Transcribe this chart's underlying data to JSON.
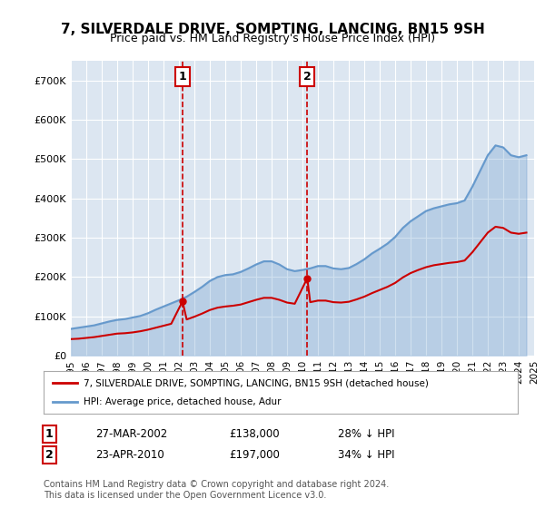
{
  "title": "7, SILVERDALE DRIVE, SOMPTING, LANCING, BN15 9SH",
  "subtitle": "Price paid vs. HM Land Registry's House Price Index (HPI)",
  "ylabel": "",
  "background_color": "#ffffff",
  "plot_bg_color": "#dce6f1",
  "grid_color": "#ffffff",
  "purchase1_date": "27-MAR-2002",
  "purchase1_price": 138000,
  "purchase1_label": "28% ↓ HPI",
  "purchase2_date": "23-APR-2010",
  "purchase2_price": 197000,
  "purchase2_label": "34% ↓ HPI",
  "purchase1_x": 2002.23,
  "purchase2_x": 2010.31,
  "red_line_color": "#cc0000",
  "blue_line_color": "#6699cc",
  "dashed_line_color": "#cc0000",
  "legend1_label": "7, SILVERDALE DRIVE, SOMPTING, LANCING, BN15 9SH (detached house)",
  "legend2_label": "HPI: Average price, detached house, Adur",
  "footnote": "Contains HM Land Registry data © Crown copyright and database right 2024.\nThis data is licensed under the Open Government Licence v3.0.",
  "ylim": [
    0,
    750000
  ],
  "yticks": [
    0,
    100000,
    200000,
    300000,
    400000,
    500000,
    600000,
    700000
  ],
  "ytick_labels": [
    "£0",
    "£100K",
    "£200K",
    "£300K",
    "£400K",
    "£500K",
    "£600K",
    "£700K"
  ],
  "hpi_years": [
    1995,
    1995.5,
    1996,
    1996.5,
    1997,
    1997.5,
    1998,
    1998.5,
    1999,
    1999.5,
    2000,
    2000.5,
    2001,
    2001.5,
    2002,
    2002.5,
    2003,
    2003.5,
    2004,
    2004.5,
    2005,
    2005.5,
    2006,
    2006.5,
    2007,
    2007.5,
    2008,
    2008.5,
    2009,
    2009.5,
    2010,
    2010.5,
    2011,
    2011.5,
    2012,
    2012.5,
    2013,
    2013.5,
    2014,
    2014.5,
    2015,
    2015.5,
    2016,
    2016.5,
    2017,
    2017.5,
    2018,
    2018.5,
    2019,
    2019.5,
    2020,
    2020.5,
    2021,
    2021.5,
    2022,
    2022.5,
    2023,
    2023.5,
    2024,
    2024.5
  ],
  "hpi_values": [
    68000,
    71000,
    74000,
    77000,
    82000,
    87000,
    91000,
    93000,
    97000,
    101000,
    108000,
    117000,
    125000,
    133000,
    141000,
    150000,
    162000,
    175000,
    190000,
    200000,
    205000,
    207000,
    213000,
    222000,
    232000,
    240000,
    240000,
    232000,
    220000,
    215000,
    218000,
    222000,
    228000,
    228000,
    222000,
    220000,
    223000,
    233000,
    245000,
    260000,
    272000,
    285000,
    302000,
    325000,
    342000,
    355000,
    368000,
    375000,
    380000,
    385000,
    388000,
    395000,
    430000,
    470000,
    510000,
    535000,
    530000,
    510000,
    505000,
    510000
  ],
  "red_years": [
    1995,
    1995.5,
    1996,
    1996.5,
    1997,
    1997.5,
    1998,
    1998.5,
    1999,
    1999.5,
    2000,
    2000.5,
    2001,
    2001.5,
    2002.23,
    2002.5,
    2003,
    2003.5,
    2004,
    2004.5,
    2005,
    2005.5,
    2006,
    2006.5,
    2007,
    2007.5,
    2008,
    2008.5,
    2009,
    2009.5,
    2010.31,
    2010.5,
    2011,
    2011.5,
    2012,
    2012.5,
    2013,
    2013.5,
    2014,
    2014.5,
    2015,
    2015.5,
    2016,
    2016.5,
    2017,
    2017.5,
    2018,
    2018.5,
    2019,
    2019.5,
    2020,
    2020.5,
    2021,
    2021.5,
    2022,
    2022.5,
    2023,
    2023.5,
    2024,
    2024.5
  ],
  "red_values": [
    42000,
    43000,
    45000,
    47000,
    50000,
    53000,
    56000,
    57000,
    59000,
    62000,
    66000,
    71000,
    76000,
    81000,
    138000,
    92000,
    99000,
    107000,
    116000,
    122000,
    125000,
    127000,
    130000,
    136000,
    142000,
    147000,
    147000,
    142000,
    135000,
    132000,
    197000,
    136000,
    140000,
    140000,
    136000,
    135000,
    137000,
    143000,
    150000,
    159000,
    167000,
    175000,
    185000,
    199000,
    210000,
    218000,
    225000,
    230000,
    233000,
    236000,
    238000,
    242000,
    263000,
    288000,
    313000,
    328000,
    325000,
    313000,
    310000,
    313000
  ],
  "xtick_years": [
    1995,
    1996,
    1997,
    1998,
    1999,
    2000,
    2001,
    2002,
    2003,
    2004,
    2005,
    2006,
    2007,
    2008,
    2009,
    2010,
    2011,
    2012,
    2013,
    2014,
    2015,
    2016,
    2017,
    2018,
    2019,
    2020,
    2021,
    2022,
    2023,
    2024,
    2025
  ]
}
